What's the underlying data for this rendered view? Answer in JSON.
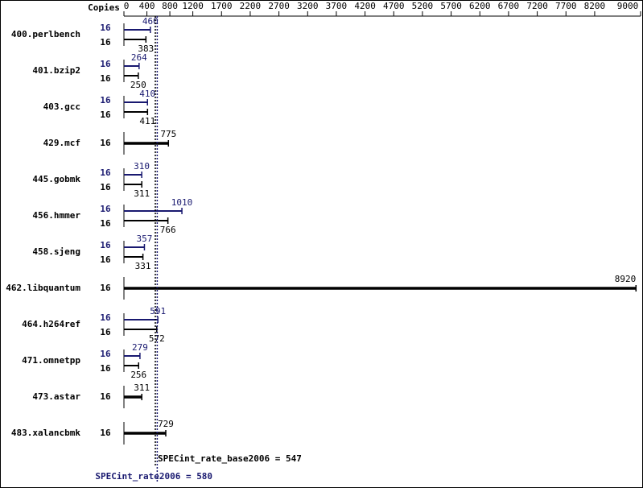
{
  "chart_data": {
    "type": "bar",
    "orientation": "horizontal",
    "copies_label": "Copies",
    "categories": [
      "400.perlbench",
      "401.bzip2",
      "403.gcc",
      "429.mcf",
      "445.gobmk",
      "456.hmmer",
      "458.sjeng",
      "462.libquantum",
      "464.h264ref",
      "471.omnetpp",
      "473.astar",
      "483.xalancbmk"
    ],
    "series": [
      {
        "color": "#191970",
        "copies": [
          16,
          16,
          16,
          null,
          16,
          16,
          16,
          null,
          16,
          16,
          null,
          null
        ],
        "values": [
          460,
          264,
          410,
          null,
          310,
          1010,
          357,
          null,
          591,
          279,
          null,
          null
        ]
      },
      {
        "color": "#000000",
        "copies": [
          16,
          16,
          16,
          16,
          16,
          16,
          16,
          16,
          16,
          16,
          16,
          16
        ],
        "values": [
          383,
          250,
          411,
          775,
          311,
          766,
          331,
          8920,
          572,
          256,
          311,
          729
        ]
      }
    ],
    "xlim": [
      0,
      9000
    ],
    "xticks": [
      0,
      400,
      800,
      1200,
      1700,
      2200,
      2700,
      3200,
      3700,
      4200,
      4700,
      5200,
      5700,
      6200,
      6700,
      7200,
      7700,
      8200,
      9000
    ],
    "reference_lines": [
      {
        "label": "SPECint_rate_base2006 = 547",
        "value": 547,
        "color": "#000000"
      },
      {
        "label": "SPECint_rate2006 = 580",
        "value": 580,
        "color": "#191970"
      }
    ]
  }
}
